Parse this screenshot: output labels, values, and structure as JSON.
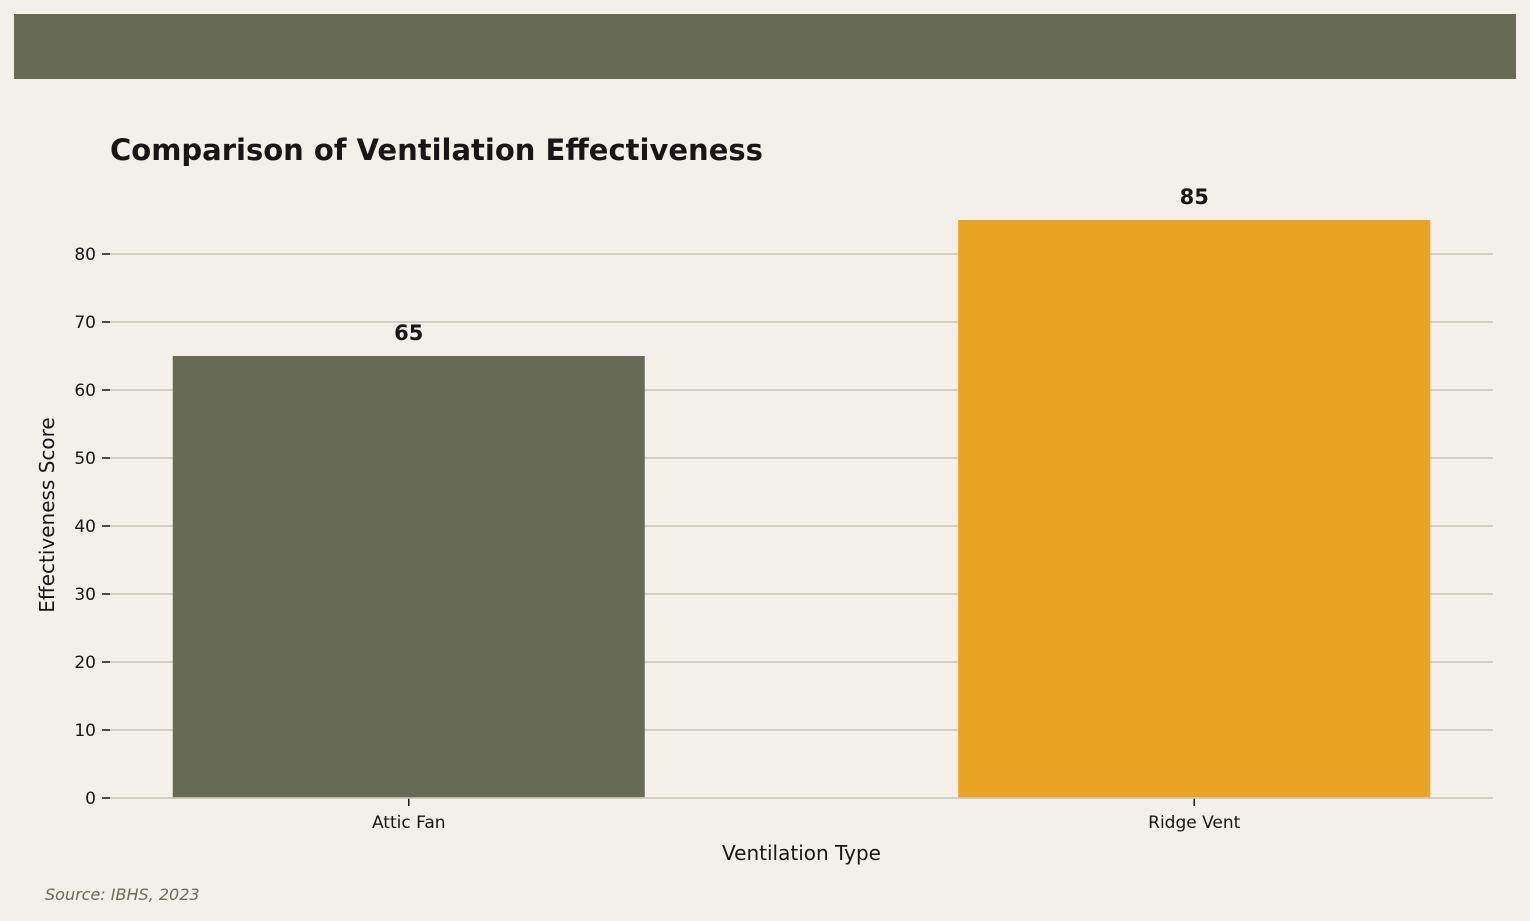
{
  "chart_data": {
    "type": "bar",
    "title": "Comparison of Ventilation Effectiveness",
    "xlabel": "Ventilation Type",
    "ylabel": "Effectiveness Score",
    "categories": [
      "Attic Fan",
      "Ridge Vent"
    ],
    "values": [
      65,
      85
    ],
    "value_labels": [
      "65",
      "85"
    ],
    "bar_colors": [
      "#676a55",
      "#e8a323"
    ],
    "ylim": [
      0,
      85
    ],
    "yticks": [
      0,
      10,
      20,
      30,
      40,
      50,
      60,
      70,
      80
    ],
    "grid": "horizontal",
    "legend": "none"
  },
  "footer": {
    "source": "Source: IBHS, 2023"
  },
  "colors": {
    "background": "#f2f0e8",
    "header_band": "#676a55",
    "grid": "#d2cfbf",
    "text": "#1a1416",
    "source_text": "#6b6b5a"
  }
}
